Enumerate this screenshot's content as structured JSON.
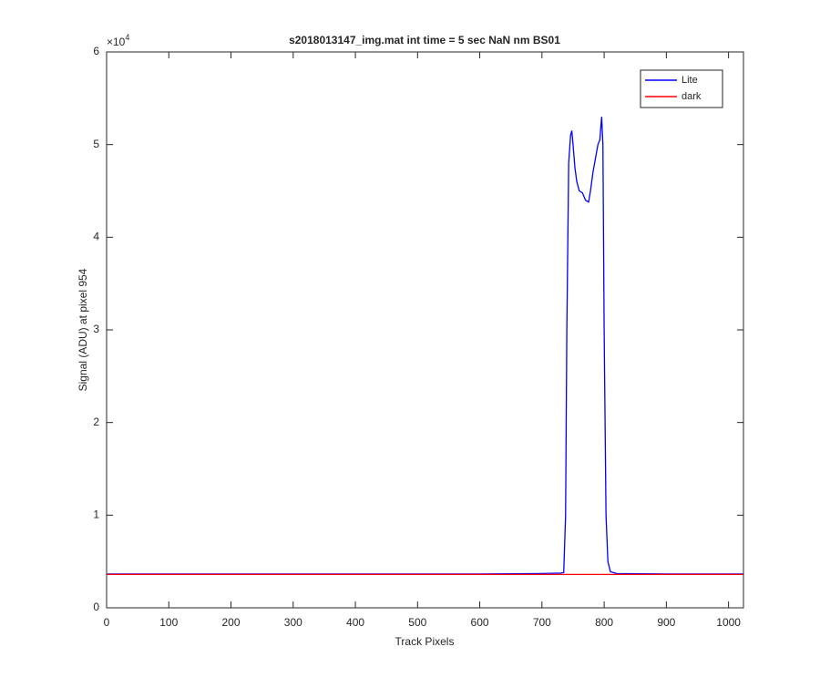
{
  "chart_data": {
    "type": "line",
    "title": "s2018013147_img.mat int time = 5 sec  NaN nm BS01",
    "x_label": "Track Pixels",
    "y_label": "Signal (ADU) at pixel 954",
    "y_exponent": {
      "base": "×10",
      "power": "4"
    },
    "xlim": [
      0,
      1024
    ],
    "xticks": [
      0,
      100,
      200,
      300,
      400,
      500,
      600,
      700,
      800,
      900,
      1000
    ],
    "ylim": [
      0,
      60000
    ],
    "yticks": [
      {
        "value": 0,
        "label": "0"
      },
      {
        "value": 10000,
        "label": "1"
      },
      {
        "value": 20000,
        "label": "2"
      },
      {
        "value": 30000,
        "label": "3"
      },
      {
        "value": 40000,
        "label": "4"
      },
      {
        "value": 50000,
        "label": "5"
      },
      {
        "value": 60000,
        "label": "6"
      }
    ],
    "grid": false,
    "legend": "top-right",
    "series": [
      {
        "name": "Lite",
        "color": "#0000ff",
        "x": [
          1,
          100,
          200,
          300,
          400,
          500,
          600,
          700,
          730,
          735,
          738,
          740,
          743,
          746,
          748,
          750,
          753,
          756,
          760,
          765,
          770,
          775,
          778,
          782,
          786,
          790,
          793,
          796,
          798,
          800,
          803,
          806,
          810,
          820,
          900,
          1024
        ],
        "values": [
          3650,
          3650,
          3650,
          3650,
          3650,
          3650,
          3650,
          3700,
          3750,
          3800,
          10000,
          30000,
          48000,
          51000,
          51500,
          50000,
          47500,
          46000,
          45000,
          44800,
          44000,
          43800,
          45000,
          47000,
          48500,
          50000,
          50500,
          53000,
          50000,
          30000,
          10000,
          5000,
          3900,
          3700,
          3650,
          3650
        ]
      },
      {
        "name": "dark",
        "color": "#ff0000",
        "x": [
          1,
          1024
        ],
        "values": [
          3600,
          3600
        ]
      }
    ]
  }
}
